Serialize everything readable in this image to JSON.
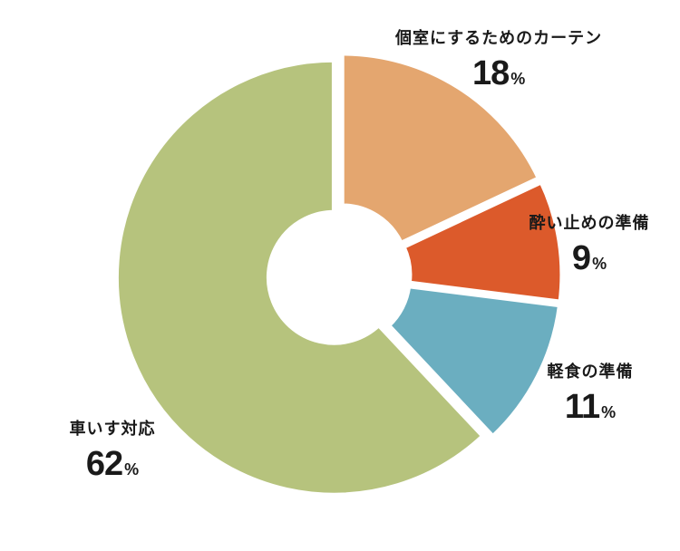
{
  "chart_data": {
    "type": "pie",
    "donut": true,
    "title": "",
    "slices": [
      {
        "label": "個室にするためのカーテン",
        "value": 18,
        "value_text": "18",
        "unit": "%",
        "color": "#E4A66F"
      },
      {
        "label": "酔い止めの準備",
        "value": 9,
        "value_text": "9",
        "unit": "%",
        "color": "#DC5A2B"
      },
      {
        "label": "軽食の準備",
        "value": 11,
        "value_text": "11",
        "unit": "%",
        "color": "#6BAEC0"
      },
      {
        "label": "車いす対応",
        "value": 62,
        "value_text": "62",
        "unit": "%",
        "color": "#B6C37D"
      }
    ],
    "start_angle_deg": 0,
    "direction": "clockwise",
    "legend": "none"
  }
}
